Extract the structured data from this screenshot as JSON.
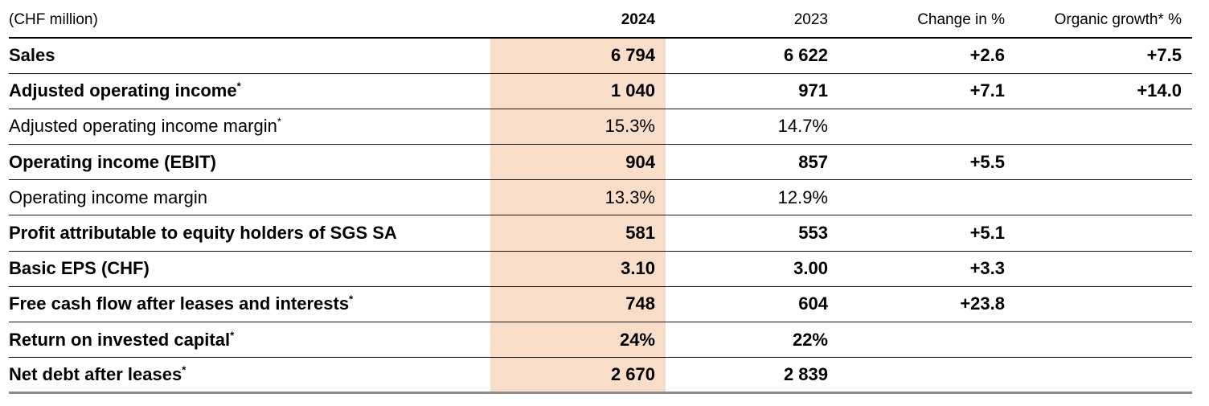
{
  "table": {
    "unit_label": "(CHF million)",
    "columns": {
      "y2024": "2024",
      "y2023": "2023",
      "change": "Change in %",
      "organic": "Organic growth* %"
    },
    "highlight_color": "#f8ddc8",
    "rows": [
      {
        "label": "Sales",
        "sup": "",
        "y2024": "6 794",
        "y2023": "6 622",
        "change": "+2.6",
        "organic": "+7.5"
      },
      {
        "label": "Adjusted operating income",
        "sup": "*",
        "y2024": "1 040",
        "y2023": "971",
        "change": "+7.1",
        "organic": "+14.0"
      },
      {
        "label": "Adjusted operating income margin",
        "sup": "*",
        "y2024": "15.3%",
        "y2023": "14.7%",
        "change": "",
        "organic": ""
      },
      {
        "label": "Operating income (EBIT)",
        "sup": "",
        "y2024": "904",
        "y2023": "857",
        "change": "+5.5",
        "organic": ""
      },
      {
        "label": "Operating income margin",
        "sup": "",
        "y2024": "13.3%",
        "y2023": "12.9%",
        "change": "",
        "organic": ""
      },
      {
        "label": "Profit attributable to equity holders of SGS SA",
        "sup": "",
        "y2024": "581",
        "y2023": "553",
        "change": "+5.1",
        "organic": ""
      },
      {
        "label": "Basic EPS (CHF)",
        "sup": "",
        "y2024": "3.10",
        "y2023": "3.00",
        "change": "+3.3",
        "organic": ""
      },
      {
        "label": "Free cash flow after leases and interests",
        "sup": "*",
        "y2024": "748",
        "y2023": "604",
        "change": "+23.8",
        "organic": ""
      },
      {
        "label": "Return on invested capital",
        "sup": "*",
        "y2024": "24%",
        "y2023": "22%",
        "change": "",
        "organic": ""
      },
      {
        "label": "Net debt after leases",
        "sup": "*",
        "y2024": "2 670",
        "y2023": "2 839",
        "change": "",
        "organic": ""
      }
    ]
  }
}
